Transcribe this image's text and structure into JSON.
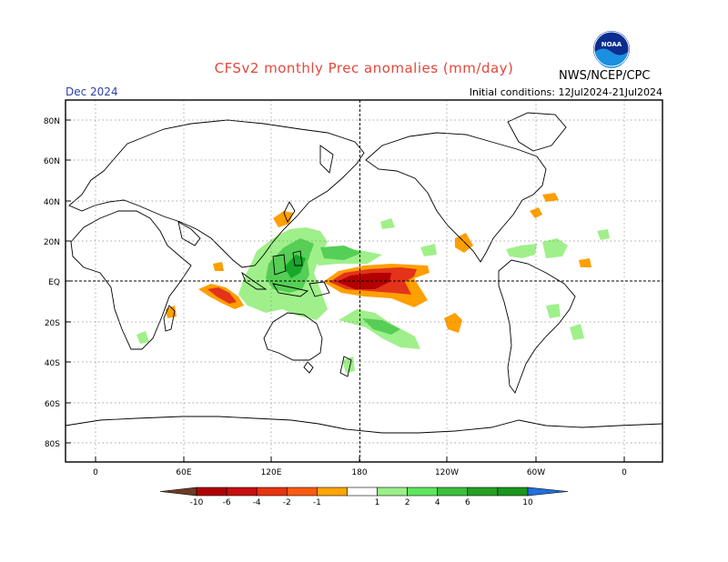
{
  "header": {
    "title": "CFSv2 monthly Prec anomalies (mm/day)",
    "valid_month": "Dec 2024",
    "initial_conditions": "Initial conditions: 12Jul2024-21Jul2024",
    "agency": "NWS/NCEP/CPC",
    "logo_text": "NOAA"
  },
  "map": {
    "lat_labels": [
      "80N",
      "60N",
      "40N",
      "20N",
      "EQ",
      "20S",
      "40S",
      "60S",
      "80S"
    ],
    "lon_labels": [
      "0",
      "60E",
      "120E",
      "180",
      "120W",
      "60W",
      "0"
    ],
    "colors": {
      "land_outline": "#000000",
      "grid": "#8a8a8a",
      "dry_strong": "#b30000",
      "dry_mid": "#e3331a",
      "dry_light": "#ff9f00",
      "wet_light": "#9ff08a",
      "wet_mid": "#55cf55",
      "wet_strong": "#17a82a"
    }
  },
  "colorbar": {
    "ticks": [
      "-10",
      "-6",
      "-4",
      "-2",
      "-1",
      "1",
      "2",
      "4",
      "6",
      "10"
    ],
    "colors": [
      "#6b3b26",
      "#b00000",
      "#c80f0f",
      "#e8330f",
      "#ff5a10",
      "#ffa500",
      "#ffffff",
      "#9af089",
      "#5ee65e",
      "#3dbf3d",
      "#24a024",
      "#19961b",
      "#1f6fe0"
    ]
  }
}
